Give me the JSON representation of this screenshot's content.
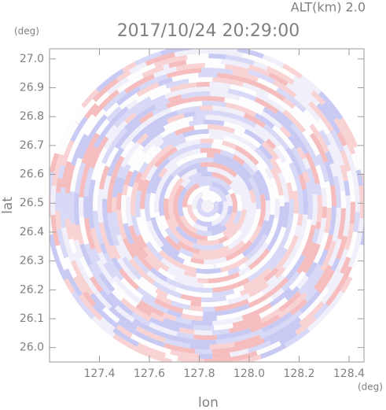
{
  "chart_data": {
    "type": "ppi",
    "title": "2017/10/24 20:29:00",
    "subtitle": "ALT(km) 2.0",
    "x_label": "lon",
    "y_label": "lat",
    "x_unit": "(deg)",
    "y_unit": "(deg)",
    "xlim": [
      127.2,
      128.46
    ],
    "ylim": [
      25.95,
      27.035
    ],
    "xticks": [
      127.4,
      127.6,
      127.8,
      {
        "value": 128,
        "label": "128.0"
      },
      128.2,
      128.4
    ],
    "yticks": [
      {
        "value": 26,
        "label": "26.0"
      },
      26.1,
      26.2,
      26.3,
      26.4,
      26.5,
      26.6,
      26.7,
      26.8,
      26.9,
      {
        "value": 27,
        "label": "27.0"
      }
    ]
  }
}
